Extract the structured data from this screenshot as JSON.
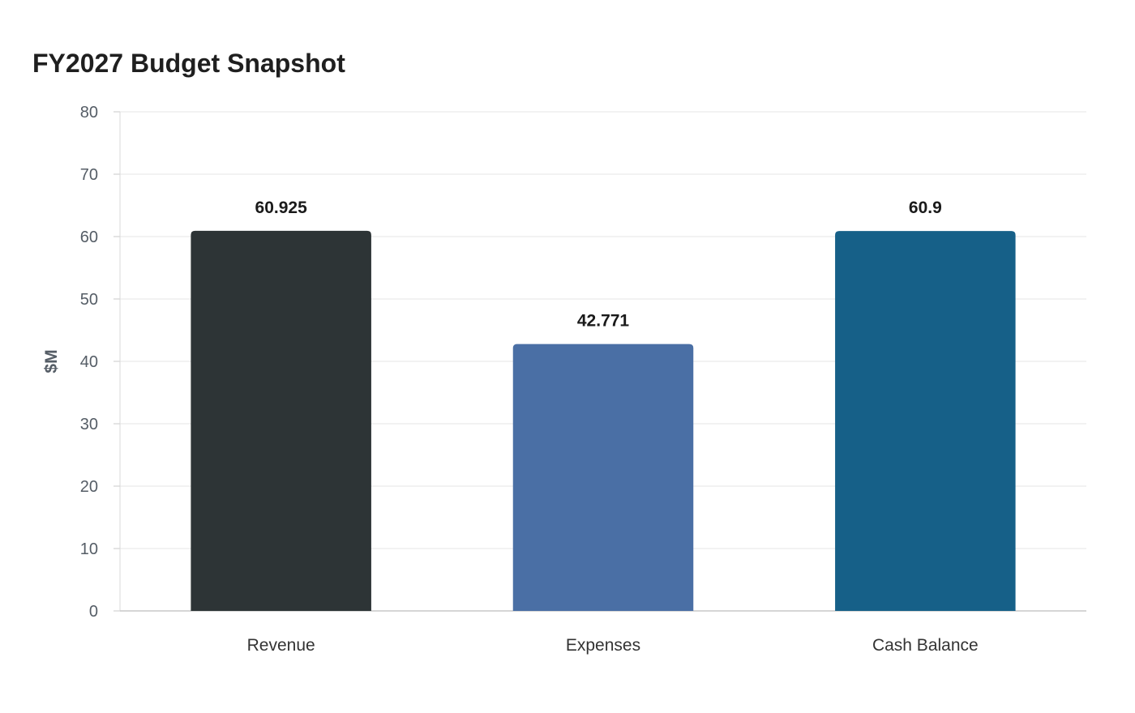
{
  "chart_data": {
    "type": "bar",
    "title": "FY2027 Budget Snapshot",
    "xlabel": "",
    "ylabel": "$M",
    "categories": [
      "Revenue",
      "Expenses",
      "Cash Balance"
    ],
    "values": [
      60.925,
      42.771,
      60.9
    ],
    "data_labels": [
      "60.925",
      "42.771",
      "60.9"
    ],
    "colors": [
      "#2d3436",
      "#4a6fa5",
      "#166088"
    ],
    "ylim": [
      0,
      80
    ],
    "yticks": [
      0,
      10,
      20,
      30,
      40,
      50,
      60,
      70,
      80
    ],
    "grid": true,
    "legend": "none"
  }
}
